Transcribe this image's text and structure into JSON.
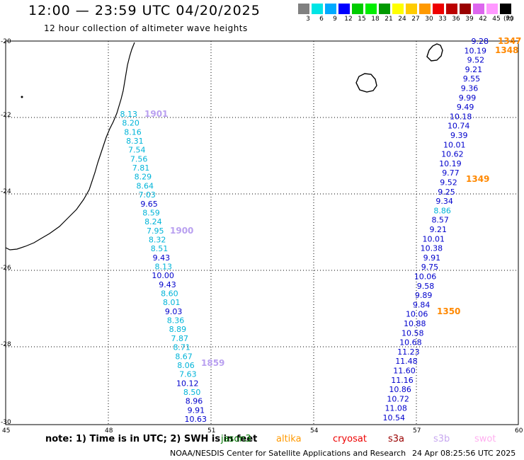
{
  "header": {
    "title": "12:00 — 23:59 UTC 04/20/2025",
    "subtitle": "12 hour collection of altimeter wave heights"
  },
  "legend": {
    "colors": [
      "#808080",
      "#00e5e5",
      "#00aaff",
      "#0000ff",
      "#00cc00",
      "#00ee00",
      "#009900",
      "#ffff00",
      "#ffcc00",
      "#ff9900",
      "#ee0000",
      "#bb0000",
      "#990000",
      "#dd66ee",
      "#ff99ff",
      "#000000"
    ],
    "labels": [
      "3",
      "6",
      "9",
      "12",
      "15",
      "18",
      "21",
      "24",
      "27",
      "30",
      "33",
      "36",
      "39",
      "42",
      "45",
      "70"
    ],
    "unit": "(ft)"
  },
  "axes": {
    "x_ticks": [
      "45",
      "48",
      "51",
      "54",
      "57",
      "60"
    ],
    "y_ticks": [
      "-20",
      "-22",
      "-24",
      "-26",
      "-28",
      "-30"
    ]
  },
  "tracks": {
    "west": {
      "values": [
        "8.13",
        "8.20",
        "8.16",
        "8.31",
        "7.54",
        "7.56",
        "7.81",
        "8.29",
        "8.64",
        "7.03",
        "9.65",
        "8.59",
        "8.24",
        "7.95",
        "8.32",
        "8.51",
        "9.43",
        "8.13",
        "10.00",
        "9.43",
        "8.60",
        "8.01",
        "9.03",
        "8.36",
        "8.89",
        "7.87",
        "8.71",
        "8.67",
        "8.06",
        "7.63",
        "10.12",
        "8.50",
        "8.96",
        "9.91",
        "10.63"
      ],
      "colors": [
        "c",
        "c",
        "c",
        "c",
        "c",
        "c",
        "c",
        "c",
        "c",
        "c",
        "b",
        "c",
        "c",
        "c",
        "c",
        "c",
        "b",
        "c",
        "b",
        "b",
        "c",
        "c",
        "b",
        "c",
        "c",
        "c",
        "c",
        "c",
        "c",
        "c",
        "b",
        "c",
        "b",
        "b",
        "b"
      ],
      "passes": [
        {
          "label": "1901",
          "color": "#b9a0f0"
        },
        {
          "label": "1900",
          "color": "#b9a0f0"
        },
        {
          "label": "1859",
          "color": "#b9a0f0"
        }
      ]
    },
    "east": {
      "values": [
        "9.28",
        "10.19",
        "9.52",
        "9.21",
        "9.55",
        "9.36",
        "9.99",
        "9.49",
        "10.18",
        "10.74",
        "9.39",
        "10.01",
        "10.62",
        "10.19",
        "9.77",
        "9.52",
        "9.25",
        "9.34",
        "8.86",
        "8.57",
        "9.21",
        "10.01",
        "10.38",
        "9.91",
        "9.75",
        "10.06",
        "9.58",
        "9.89",
        "9.84",
        "10.06",
        "10.88",
        "10.58",
        "10.68",
        "11.23",
        "11.48",
        "11.60",
        "11.16",
        "10.86",
        "10.72",
        "11.08",
        "10.54"
      ],
      "colors": [
        "b",
        "b",
        "b",
        "b",
        "b",
        "b",
        "b",
        "b",
        "b",
        "b",
        "b",
        "b",
        "b",
        "b",
        "b",
        "b",
        "b",
        "b",
        "c",
        "b",
        "b",
        "b",
        "b",
        "b",
        "b",
        "b",
        "b",
        "b",
        "b",
        "b",
        "b",
        "b",
        "b",
        "b",
        "b",
        "b",
        "b",
        "b",
        "b",
        "b",
        "b"
      ],
      "passes": [
        {
          "label": "1347",
          "color": "#ff8800"
        },
        {
          "label": "1348",
          "color": "#ff8800"
        },
        {
          "label": "1349",
          "color": "#ff8800"
        },
        {
          "label": "1350",
          "color": "#ff8800"
        }
      ]
    }
  },
  "note": {
    "text": "note:  1) Time is in UTC;  2) SWH is in feet",
    "satellites": [
      {
        "name": "jason3",
        "color": "#007700"
      },
      {
        "name": "altika",
        "color": "#ff9900"
      },
      {
        "name": "cryosat",
        "color": "#ee0000"
      },
      {
        "name": "s3a",
        "color": "#990000"
      },
      {
        "name": "s3b",
        "color": "#c8a8f0"
      },
      {
        "name": "swot",
        "color": "#ffb0f0"
      }
    ]
  },
  "footer": {
    "credit": "NOAA/NESDIS Center for Satellite Applications and Research",
    "timestamp": "24 Apr 08:25:56 UTC 2025"
  }
}
